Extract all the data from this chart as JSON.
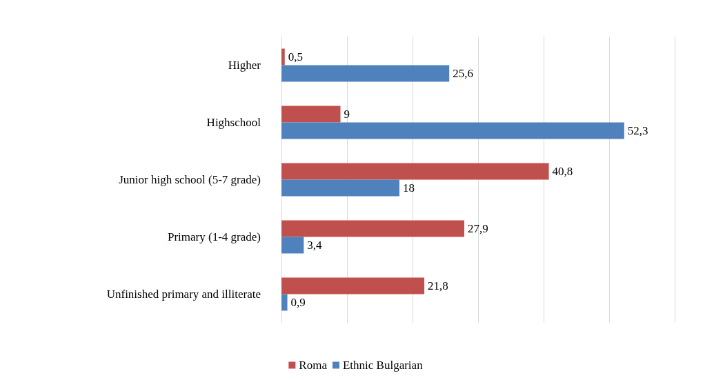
{
  "chart_data": {
    "type": "bar",
    "orientation": "horizontal",
    "categories": [
      "Higher",
      "Highschool",
      "Junior high school (5-7 grade)",
      "Primary (1-4 grade)",
      "Unfinished primary and illiterate"
    ],
    "series": [
      {
        "name": "Roma",
        "color": "#c0504d",
        "values": [
          0.5,
          9,
          40.8,
          27.9,
          21.8
        ],
        "value_labels": [
          "0,5",
          "9",
          "40,8",
          "27,9",
          "21,8"
        ]
      },
      {
        "name": "Ethnic Bulgarian",
        "color": "#4f81bd",
        "values": [
          25.6,
          52.3,
          18,
          3.4,
          0.9
        ],
        "value_labels": [
          "25,6",
          "52,3",
          "18",
          "3,4",
          "0,9"
        ]
      }
    ],
    "xlim": [
      0,
      60
    ],
    "xticks": [
      {
        "value": 0,
        "label": null
      },
      {
        "value": 10,
        "label": null
      },
      {
        "value": 20,
        "label": null
      },
      {
        "value": 30,
        "label": null
      },
      {
        "value": 40,
        "label": null
      },
      {
        "value": 50,
        "label": null
      },
      {
        "value": 60,
        "label": null
      }
    ],
    "grid": "x",
    "legend": "bottom",
    "tick_labels": "y"
  }
}
